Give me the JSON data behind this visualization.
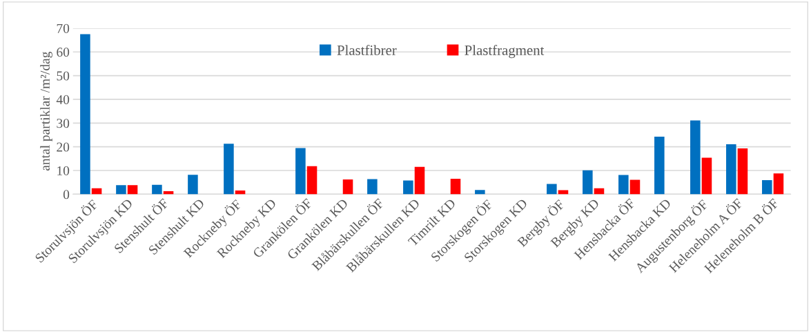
{
  "chart_data": {
    "type": "bar",
    "ylabel": "antal partiklar /m²/dag",
    "categories": [
      "Storulvsjön ÖF",
      "Storulvsjön KD",
      "Stenshult ÖF",
      "Stenshult KD",
      "Rockneby ÖF",
      "Rockneby KD",
      "Grankölen ÖF",
      "Grankölen KD",
      "Blåbärskullen ÖF",
      "Blåbärskullen KD",
      "Timrilt KD",
      "Storskogen ÖF",
      "Storskogen KD",
      "Bergby ÖF",
      "Bergby KD",
      "Hensbacka ÖF",
      "Hensbacka KD",
      "Augustenborg ÖF",
      "Heleneholm A ÖF",
      "Heleneholm B ÖF"
    ],
    "series": [
      {
        "name": "Plastfibrer",
        "color": "#0070c0",
        "values": [
          67.5,
          3.8,
          4.0,
          8.2,
          21.3,
          0,
          19.5,
          0,
          6.4,
          5.8,
          0,
          1.8,
          0,
          4.3,
          10.1,
          8.1,
          24.3,
          31.1,
          21.1,
          5.9
        ]
      },
      {
        "name": "Plastfragment",
        "color": "#ff0000",
        "values": [
          2.5,
          3.8,
          1.3,
          0,
          1.6,
          0,
          11.8,
          6.2,
          0,
          11.5,
          6.5,
          0,
          0,
          1.7,
          2.5,
          6.1,
          0,
          15.4,
          19.3,
          8.8
        ]
      }
    ],
    "ylim": [
      0,
      70
    ],
    "yticks": [
      0,
      10,
      20,
      30,
      40,
      50,
      60,
      70
    ],
    "grid": "y",
    "legend": "top"
  }
}
